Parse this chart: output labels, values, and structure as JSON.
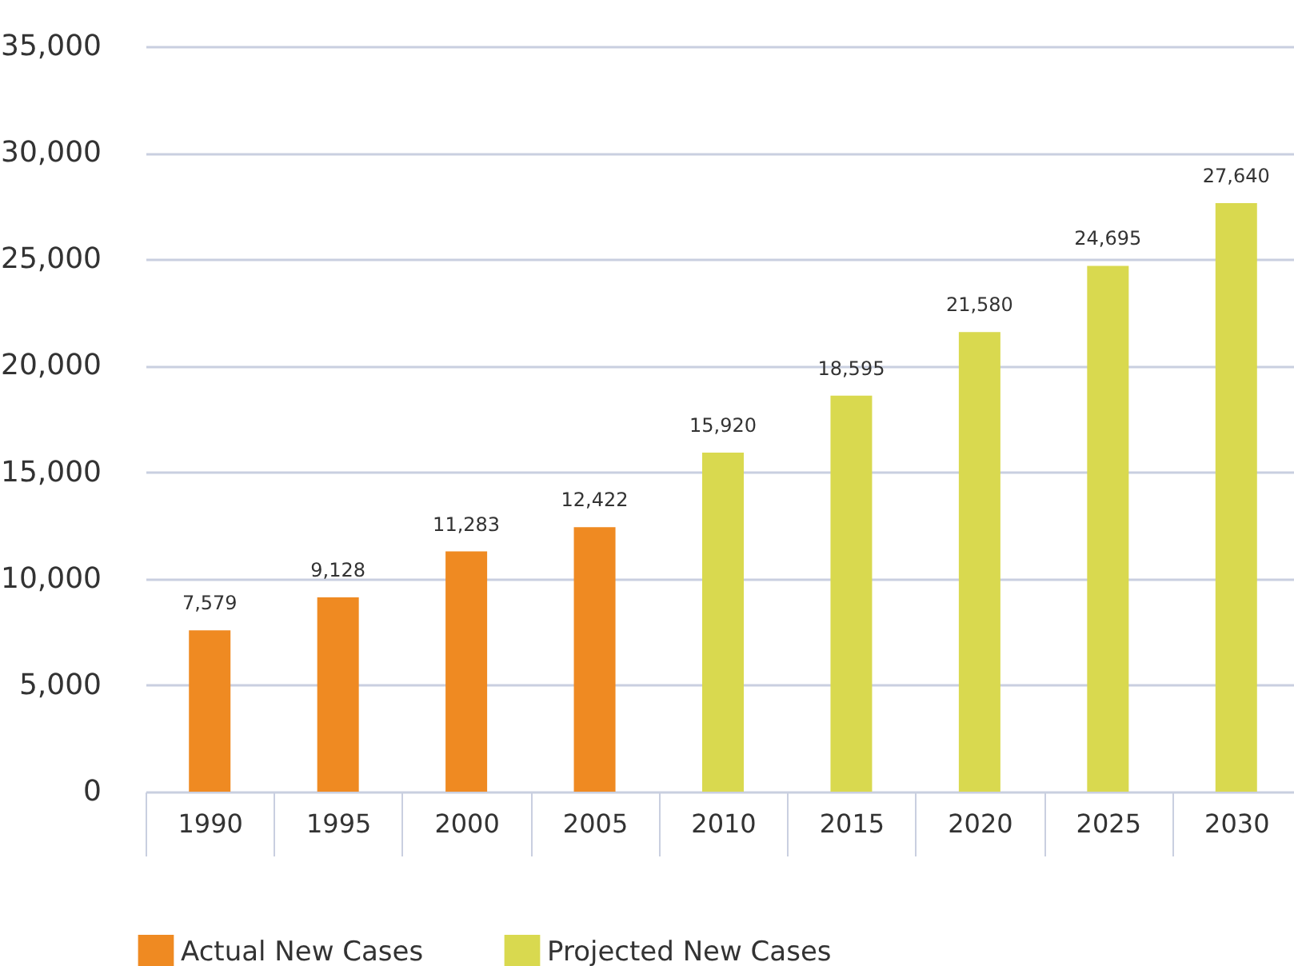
{
  "chart_data": {
    "type": "bar",
    "categories": [
      "1990",
      "1995",
      "2000",
      "2005",
      "2010",
      "2015",
      "2020",
      "2025",
      "2030"
    ],
    "series": [
      {
        "name": "Actual New Cases",
        "color": "#ef8a22",
        "values": [
          7579,
          9128,
          11283,
          12422,
          null,
          null,
          null,
          null,
          null
        ],
        "value_labels": [
          "7,579",
          "9,128",
          "11,283",
          "12,422",
          null,
          null,
          null,
          null,
          null
        ]
      },
      {
        "name": "Projected New Cases",
        "color": "#d9d94f",
        "values": [
          null,
          null,
          null,
          null,
          15920,
          18595,
          21580,
          24695,
          27640
        ],
        "value_labels": [
          null,
          null,
          null,
          null,
          "15,920",
          "18,595",
          "21,580",
          "24,695",
          "27,640"
        ]
      }
    ],
    "ylim": [
      0,
      35000
    ],
    "yticks": [
      {
        "value": 0,
        "label": "0"
      },
      {
        "value": 5000,
        "label": "5,000"
      },
      {
        "value": 10000,
        "label": "10,000"
      },
      {
        "value": 15000,
        "label": "15,000"
      },
      {
        "value": 20000,
        "label": "20,000"
      },
      {
        "value": 25000,
        "label": "25,000"
      },
      {
        "value": 30000,
        "label": "30,000"
      },
      {
        "value": 35000,
        "label": "35,000"
      }
    ],
    "grid": "y",
    "legend": "bottom left"
  }
}
